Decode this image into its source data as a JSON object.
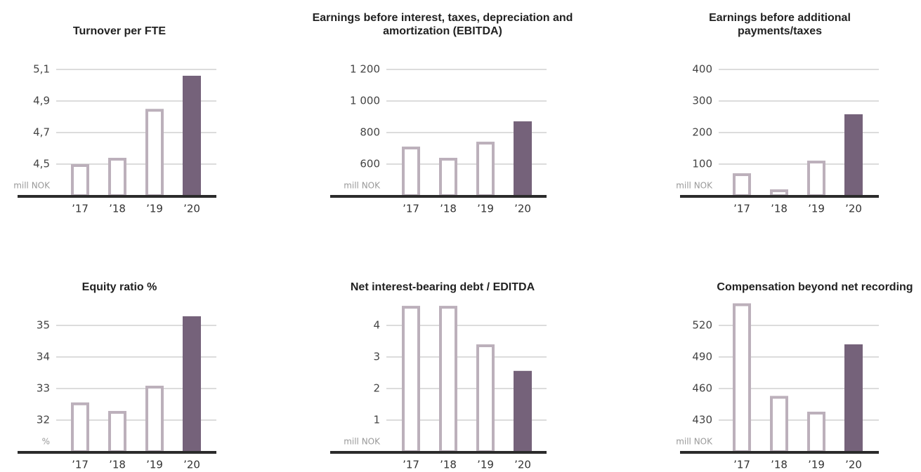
{
  "chart_data": [
    {
      "type": "bar",
      "title": "Turnover per FTE",
      "unit_label": "mill NOK",
      "categories": [
        "’17",
        "’18",
        "’19",
        "’20"
      ],
      "values": [
        4.5,
        4.54,
        4.85,
        5.06
      ],
      "colors": [
        "#bcb0bb",
        "#bcb0bb",
        "#bcb0bb",
        "#75627a"
      ],
      "filled": [
        false,
        false,
        false,
        true
      ],
      "ylim": [
        4.3,
        5.3
      ],
      "yticks": [
        {
          "value": 4.5,
          "label": "4,5"
        },
        {
          "value": 4.7,
          "label": "4,7"
        },
        {
          "value": 4.9,
          "label": "4,9"
        },
        {
          "value": 5.1,
          "label": "5,1"
        }
      ],
      "grid": true
    },
    {
      "type": "bar",
      "title": "Earnings before interest, taxes, depreciation and amortization (EBITDA)",
      "unit_label": "mill NOK",
      "categories": [
        "’17",
        "’18",
        "’19",
        "’20"
      ],
      "values": [
        711,
        640,
        742,
        871
      ],
      "colors": [
        "#bcb0bb",
        "#bcb0bb",
        "#bcb0bb",
        "#75627a"
      ],
      "filled": [
        false,
        false,
        false,
        true
      ],
      "ylim": [
        400,
        1400
      ],
      "yticks": [
        600,
        800,
        {
          "value": 1000,
          "label": "1 000"
        },
        {
          "value": 1200,
          "label": "1 200"
        }
      ],
      "grid": true
    },
    {
      "type": "bar",
      "title": "Earnings before additional payments/taxes",
      "unit_label": "mill NOK",
      "categories": [
        "’17",
        "’18",
        "’19",
        "’20"
      ],
      "values": [
        71,
        20,
        111,
        258
      ],
      "colors": [
        "#bcb0bb",
        "#bcb0bb",
        "#bcb0bb",
        "#75627a"
      ],
      "filled": [
        false,
        false,
        false,
        true
      ],
      "ylim": [
        0,
        500
      ],
      "yticks": [
        100,
        200,
        300,
        400
      ],
      "grid": true
    },
    {
      "type": "bar",
      "title": "Equity ratio %",
      "unit_label": "%",
      "categories": [
        "’17",
        "’18",
        "’19",
        "’20"
      ],
      "values": [
        32.56,
        32.29,
        33.09,
        35.29
      ],
      "colors": [
        "#bcb0bb",
        "#bcb0bb",
        "#bcb0bb",
        "#75627a"
      ],
      "filled": [
        false,
        false,
        false,
        true
      ],
      "ylim": [
        31,
        36
      ],
      "yticks": [
        32,
        33,
        34,
        35
      ],
      "grid": true
    },
    {
      "type": "bar",
      "title": "Net interest-bearing debt / EDITDA",
      "unit_label": "mill NOK",
      "categories": [
        "’17",
        "’18",
        "’19",
        "’20"
      ],
      "values": [
        4.62,
        4.62,
        3.4,
        2.56
      ],
      "colors": [
        "#bcb0bb",
        "#bcb0bb",
        "#bcb0bb",
        "#75627a"
      ],
      "filled": [
        false,
        false,
        false,
        true
      ],
      "ylim": [
        0,
        5
      ],
      "yticks": [
        1,
        2,
        3,
        4
      ],
      "grid": true
    },
    {
      "type": "bar",
      "title": "Compensation beyond net recording",
      "unit_label": "mill NOK",
      "categories": [
        "’17",
        "’18",
        "’19",
        "’20"
      ],
      "values": [
        541,
        453,
        438,
        502
      ],
      "colors": [
        "#bcb0bb",
        "#bcb0bb",
        "#bcb0bb",
        "#75627a"
      ],
      "filled": [
        false,
        false,
        false,
        true
      ],
      "ylim": [
        400,
        550
      ],
      "yticks": [
        430,
        460,
        490,
        520
      ],
      "grid": true
    }
  ]
}
